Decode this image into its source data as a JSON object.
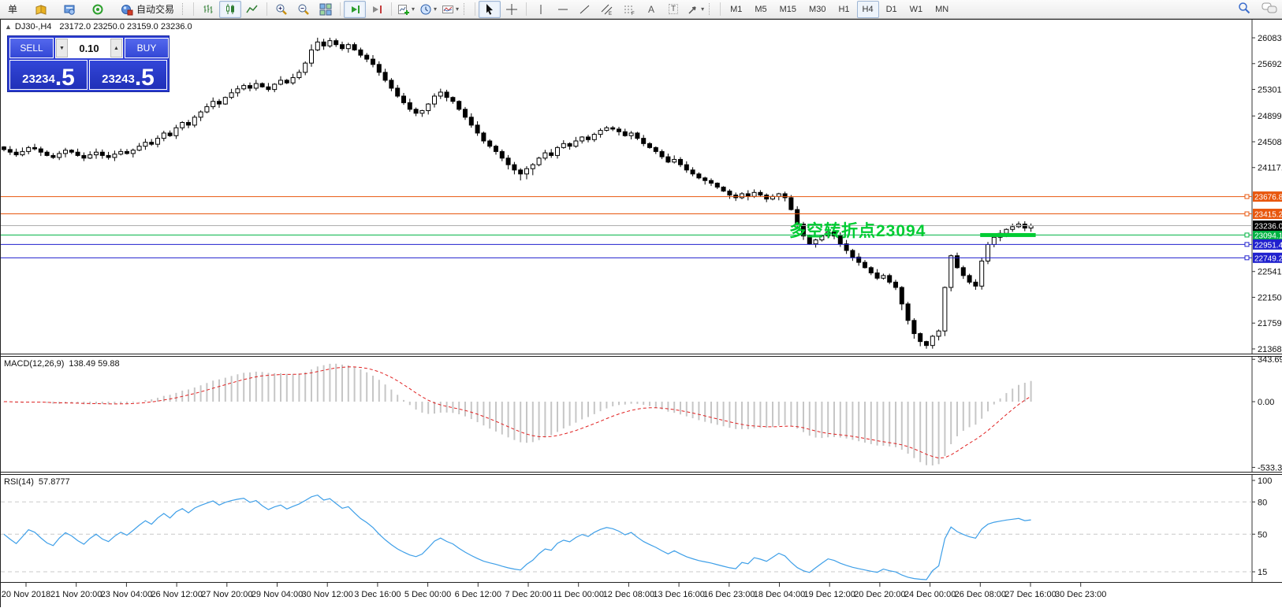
{
  "toolbar": {
    "new_order_label": "单",
    "autotrading_label": "自动交易",
    "timeframes": [
      "M1",
      "M5",
      "M15",
      "M30",
      "H1",
      "H4",
      "D1",
      "W1",
      "MN"
    ],
    "active_timeframe": "H4"
  },
  "chart": {
    "symbol_timeframe": "DJ30-,H4",
    "ohlc_line": "23172.0 23250.0 23159.0 23236.0"
  },
  "trade_panel": {
    "sell_label": "SELL",
    "buy_label": "BUY",
    "volume": "0.10",
    "sell_price_main": "23234",
    "sell_price_big": ".5",
    "buy_price_main": "23243",
    "buy_price_big": ".5"
  },
  "annotation": {
    "text": "多空转折点23094",
    "color": "#00CC33"
  },
  "indicators": {
    "macd": {
      "name": "MACD(12,26,9)",
      "values": "138.49 59.88"
    },
    "rsi": {
      "name": "RSI(14)",
      "values": "57.8777"
    }
  },
  "chart_data": [
    {
      "type": "candlestick",
      "symbol": "DJ30-",
      "timeframe": "H4",
      "current": {
        "open": "23172.0",
        "high": "23250.0",
        "low": "23159.0",
        "close": "23236.0"
      },
      "ylim": [
        21283,
        26370
      ],
      "y_ticks": [
        "26083.5",
        "25692.5",
        "25301.5",
        "24899.0",
        "24508.0",
        "24117.0",
        "22541.5",
        "22150.5",
        "21759.5",
        "21368.5"
      ],
      "levels": [
        {
          "price": 23676.8,
          "label": "23676.8",
          "color": "#E8570E"
        },
        {
          "price": 23415.2,
          "label": "23415.2",
          "color": "#E8570E"
        },
        {
          "price": 23094.1,
          "label": "23094.1",
          "color": "#00B343"
        },
        {
          "price": 22951.4,
          "label": "22951.4",
          "color": "#2021CE"
        },
        {
          "price": 22749.2,
          "label": "22749.2",
          "color": "#2021CE"
        }
      ],
      "current_price": {
        "price": 23236.0,
        "label": "23236.0",
        "line_color": "#ADADAD",
        "badge_color": "#000000"
      },
      "support_bar": {
        "price": 23094,
        "color": "#00CC33",
        "from_index": 159,
        "to_index": 167
      },
      "closes": [
        24390,
        24350,
        24310,
        24360,
        24420,
        24400,
        24350,
        24300,
        24270,
        24330,
        24380,
        24350,
        24300,
        24260,
        24310,
        24350,
        24300,
        24270,
        24320,
        24360,
        24330,
        24380,
        24440,
        24500,
        24470,
        24560,
        24640,
        24600,
        24720,
        24800,
        24760,
        24880,
        24960,
        25040,
        25120,
        25080,
        25180,
        25250,
        25310,
        25360,
        25320,
        25390,
        25340,
        25300,
        25380,
        25440,
        25400,
        25480,
        25560,
        25700,
        25900,
        26020,
        25960,
        26040,
        25980,
        25920,
        25980,
        25900,
        25820,
        25760,
        25680,
        25560,
        25440,
        25320,
        25200,
        25100,
        25000,
        24940,
        24980,
        25080,
        25200,
        25260,
        25180,
        25120,
        25000,
        24880,
        24760,
        24640,
        24520,
        24440,
        24360,
        24260,
        24160,
        24080,
        24020,
        24100,
        24160,
        24260,
        24340,
        24300,
        24420,
        24480,
        24440,
        24520,
        24580,
        24540,
        24620,
        24680,
        24720,
        24700,
        24660,
        24600,
        24640,
        24560,
        24480,
        24420,
        24360,
        24280,
        24200,
        24240,
        24160,
        24080,
        24020,
        23960,
        23920,
        23880,
        23820,
        23760,
        23700,
        23660,
        23720,
        23680,
        23740,
        23700,
        23640,
        23680,
        23720,
        23660,
        23480,
        23260,
        23080,
        22960,
        23020,
        23080,
        23140,
        23080,
        22960,
        22860,
        22760,
        22680,
        22600,
        22520,
        22440,
        22480,
        22380,
        22300,
        22050,
        21800,
        21600,
        21480,
        21420,
        21560,
        21640,
        22300,
        22780,
        22600,
        22480,
        22380,
        22320,
        22700,
        22950,
        23060,
        23120,
        23180,
        23220,
        23260,
        23200,
        23236
      ],
      "x_labels": [
        "20 Nov 2018",
        "21 Nov 20:00",
        "23 Nov 04:00",
        "26 Nov 12:00",
        "27 Nov 20:00",
        "29 Nov 04:00",
        "30 Nov 12:00",
        "3 Dec 16:00",
        "5 Dec 00:00",
        "6 Dec 12:00",
        "7 Dec 20:00",
        "11 Dec 00:00",
        "12 Dec 08:00",
        "13 Dec 16:00",
        "16 Dec 23:00",
        "18 Dec 04:00",
        "19 Dec 12:00",
        "20 Dec 20:00",
        "24 Dec 00:00",
        "26 Dec 08:00",
        "27 Dec 16:00",
        "30 Dec 23:00"
      ]
    },
    {
      "type": "macd",
      "label": "MACD(12,26,9)",
      "params": [
        12,
        26,
        9
      ],
      "current_values": [
        138.49,
        59.88
      ],
      "y_ticks": [
        "343.69",
        "0.00",
        "-533.3"
      ],
      "histogram_color": "#C6C6C6",
      "signal_color": "#E02020",
      "derived_from": "closes"
    },
    {
      "type": "rsi",
      "label": "RSI(14)",
      "period": 14,
      "current_value": 57.8777,
      "y_ticks": [
        "100",
        "80",
        "50",
        "15"
      ],
      "levels": [
        80,
        50,
        15
      ],
      "line_color": "#3E9FE8",
      "derived_from": "closes"
    }
  ]
}
